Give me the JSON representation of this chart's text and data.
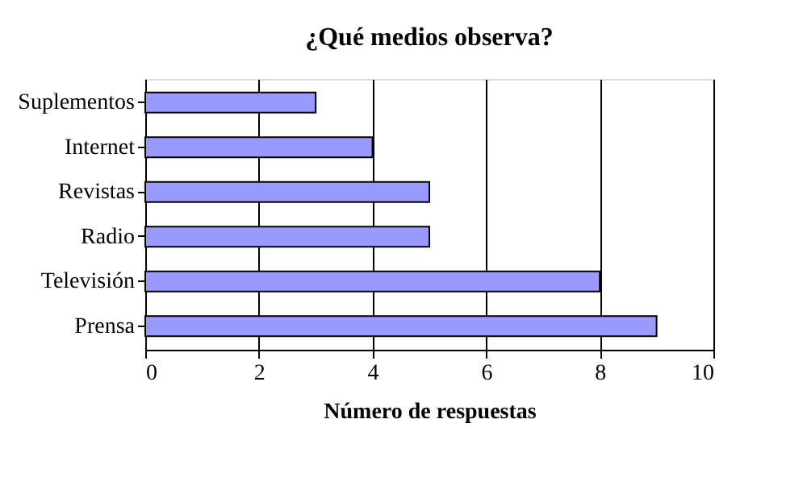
{
  "chart_data": {
    "type": "bar",
    "orientation": "horizontal",
    "title": "¿Qué medios observa?",
    "xlabel": "Número de respuestas",
    "categories": [
      "Suplementos",
      "Internet",
      "Revistas",
      "Radio",
      "Televisión",
      "Prensa"
    ],
    "values": [
      3,
      4,
      5,
      5,
      8,
      9
    ],
    "color": "#9999ff",
    "xlim": [
      0,
      10
    ],
    "xticks": [
      0,
      2,
      4,
      6,
      8,
      10
    ],
    "grid": "x"
  }
}
